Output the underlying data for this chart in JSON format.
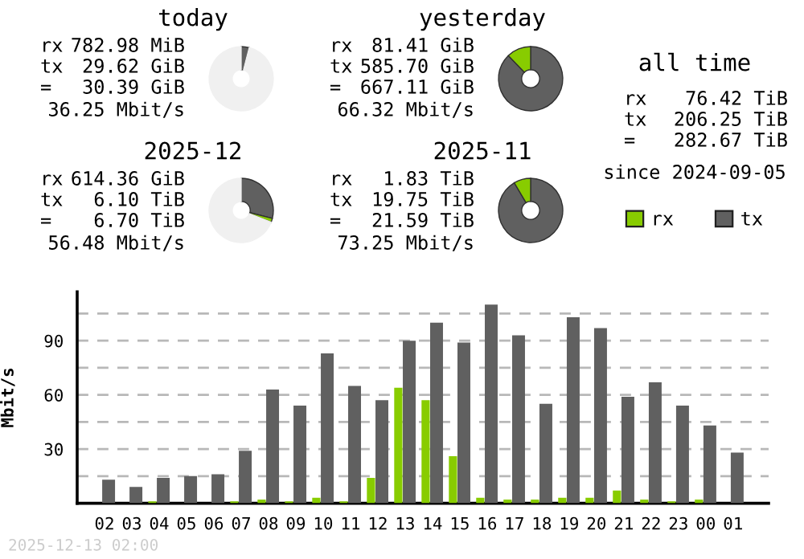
{
  "chart_data": [
    {
      "type": "donut",
      "title": "today",
      "categories": [
        null,
        null,
        null
      ],
      "values": [
        4,
        null,
        96
      ],
      "colors": [
        "#606060",
        "#88cc00",
        "#f0f0f0"
      ],
      "annotations": [
        "rx",
        "782.98 MiB",
        "tx",
        "29.62 GiB",
        "=",
        "30.39 GiB",
        "36.25 Mbit/s"
      ]
    },
    {
      "type": "donut",
      "title": "yesterday",
      "categories": [
        null,
        null
      ],
      "values": [
        87.8,
        12.2
      ],
      "colors": [
        "#606060",
        "#88cc00"
      ],
      "annotations": [
        "rx",
        "81.41 GiB",
        "tx",
        "585.70 GiB",
        "=",
        "667.11 GiB",
        "66.32 Mbit/s"
      ]
    },
    {
      "type": "other",
      "title": "all time",
      "annotations": [
        "rx",
        "76.42 TiB",
        "tx",
        "206.25 TiB",
        "=",
        "282.67 TiB",
        "since 2024-09-05"
      ]
    },
    {
      "type": "donut",
      "title": "2025-12",
      "categories": [
        null,
        null,
        null
      ],
      "values": [
        29,
        2,
        69
      ],
      "colors": [
        "#606060",
        "#88cc00",
        "#f0f0f0"
      ],
      "annotations": [
        "rx",
        "614.36 GiB",
        "tx",
        "6.10 TiB",
        "=",
        "6.70 TiB",
        "56.48 Mbit/s"
      ]
    },
    {
      "type": "donut",
      "title": "2025-11",
      "categories": [
        null,
        null
      ],
      "values": [
        91.5,
        8.5
      ],
      "colors": [
        "#606060",
        "#88cc00"
      ],
      "annotations": [
        "rx",
        "1.83 TiB",
        "tx",
        "19.75 TiB",
        "=",
        "21.59 TiB",
        "73.25 Mbit/s"
      ]
    },
    {
      "type": "bar",
      "ylabel": "Mbit/s",
      "categories": [
        "02",
        "03",
        "04",
        "05",
        "06",
        "07",
        "08",
        "09",
        "10",
        "11",
        "12",
        "13",
        "14",
        "15",
        "16",
        "17",
        "18",
        "19",
        "20",
        "21",
        "22",
        "23",
        "00",
        "01"
      ],
      "series": [
        {
          "name": "rx",
          "color": "#88cc00",
          "values": [
            0,
            0,
            1,
            0,
            0,
            1,
            2,
            1,
            3,
            1,
            14,
            64,
            57,
            26,
            3,
            2,
            2,
            3,
            3,
            7,
            2,
            1,
            2,
            0
          ]
        },
        {
          "name": "tx",
          "color": "#606060",
          "values": [
            13,
            9,
            14,
            15,
            16,
            29,
            63,
            54,
            83,
            65,
            57,
            90,
            100,
            89,
            110,
            93,
            55,
            103,
            97,
            59,
            67,
            54,
            43,
            28
          ]
        }
      ],
      "ylim": [
        0,
        117
      ],
      "yticks": [
        {
          "value": 15,
          "label": null
        },
        30,
        {
          "value": 45,
          "label": null
        },
        60,
        {
          "value": 75,
          "label": null
        },
        90,
        {
          "value": 105,
          "label": null
        }
      ],
      "grid": "y",
      "legend": "top right",
      "annotations": [
        "2025-12-13 02:00"
      ]
    }
  ]
}
